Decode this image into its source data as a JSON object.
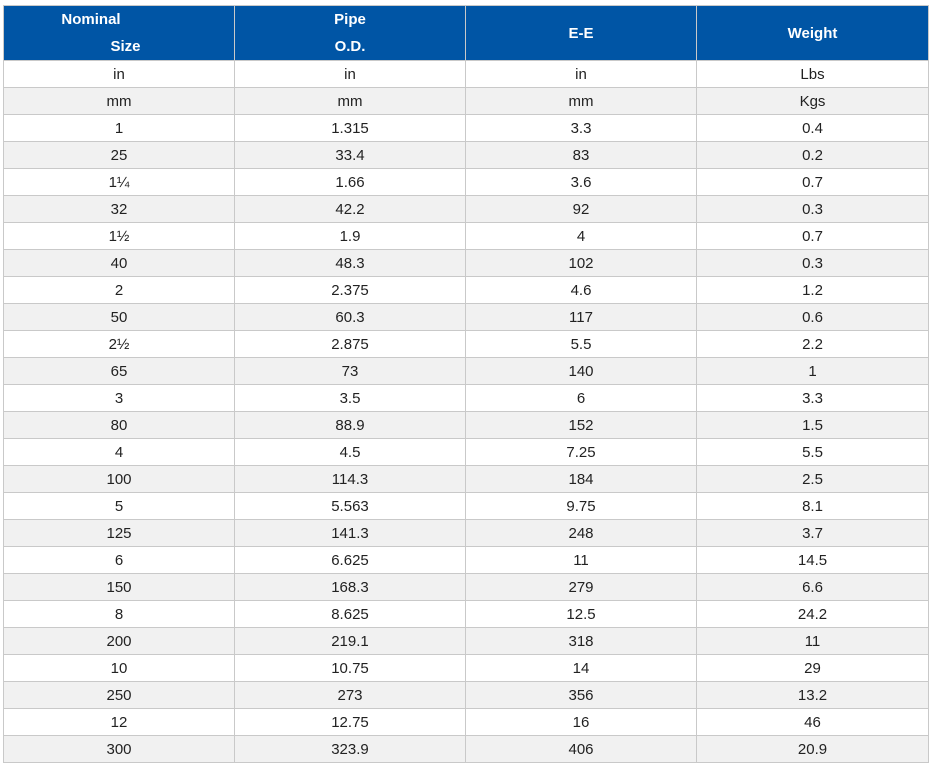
{
  "table": {
    "headers": {
      "nominal_line1": "Nominal",
      "nominal_line2": "Size",
      "pipe_line1": "Pipe",
      "pipe_line2": "O.D.",
      "ee": "E-E",
      "weight": "Weight"
    },
    "rows": [
      [
        "in",
        "in",
        "in",
        "Lbs"
      ],
      [
        "mm",
        "mm",
        "mm",
        "Kgs"
      ],
      [
        "1",
        "1.315",
        "3.3",
        "0.4"
      ],
      [
        "25",
        "33.4",
        "83",
        "0.2"
      ],
      [
        "1¼",
        "1.66",
        "3.6",
        "0.7"
      ],
      [
        "32",
        "42.2",
        "92",
        "0.3"
      ],
      [
        "1½",
        "1.9",
        "4",
        "0.7"
      ],
      [
        "40",
        "48.3",
        "102",
        "0.3"
      ],
      [
        "2",
        "2.375",
        "4.6",
        "1.2"
      ],
      [
        "50",
        "60.3",
        "117",
        "0.6"
      ],
      [
        "2½",
        "2.875",
        "5.5",
        "2.2"
      ],
      [
        "65",
        "73",
        "140",
        "1"
      ],
      [
        "3",
        "3.5",
        "6",
        "3.3"
      ],
      [
        "80",
        "88.9",
        "152",
        "1.5"
      ],
      [
        "4",
        "4.5",
        "7.25",
        "5.5"
      ],
      [
        "100",
        "114.3",
        "184",
        "2.5"
      ],
      [
        "5",
        "5.563",
        "9.75",
        "8.1"
      ],
      [
        "125",
        "141.3",
        "248",
        "3.7"
      ],
      [
        "6",
        "6.625",
        "11",
        "14.5"
      ],
      [
        "150",
        "168.3",
        "279",
        "6.6"
      ],
      [
        "8",
        "8.625",
        "12.5",
        "24.2"
      ],
      [
        "200",
        "219.1",
        "318",
        "11"
      ],
      [
        "10",
        "10.75",
        "14",
        "29"
      ],
      [
        "250",
        "273",
        "356",
        "13.2"
      ],
      [
        "12",
        "12.75",
        "16",
        "46"
      ],
      [
        "300",
        "323.9",
        "406",
        "20.9"
      ]
    ]
  },
  "colors": {
    "header_bg": "#0055a5",
    "header_text": "#ffffff",
    "stripe": "#f1f1f1",
    "border": "#c9c9c9"
  }
}
